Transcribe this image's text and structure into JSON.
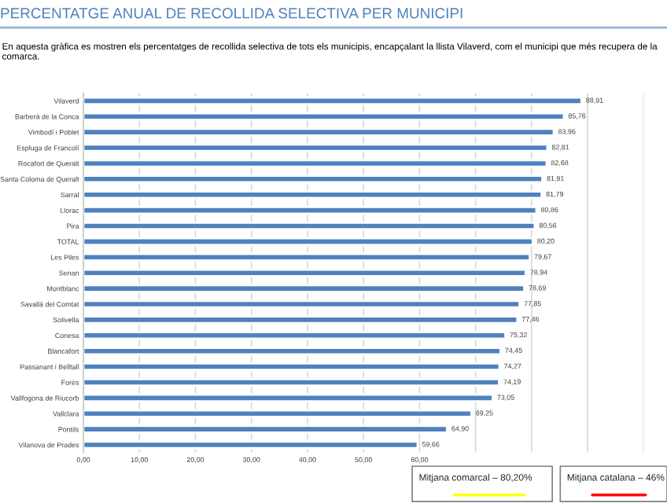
{
  "chart_data": {
    "type": "bar",
    "orientation": "horizontal",
    "title": "PERCENTATGE ANUAL DE RECOLLIDA SELECTIVA PER MUNICIPI",
    "subtitle": "En aquesta gràfica es mostren els percentatges de recollida selectiva de tots els municipis, encapçalant la llista Vilaverd, com el municipi que més recupera de la comarca.",
    "categories": [
      "Vilaverd",
      "Barberà de la Conca",
      "Vimbodí i Poblet",
      "Espluga de Francolí",
      "Rocafort de Queralt",
      "Santa Coloma de Queralt",
      "Sarral",
      "Llorac",
      "Pira",
      "TOTAL",
      "Les Piles",
      "Senan",
      "Montblanc",
      "Savallà del Comtat",
      "Solivella",
      "Conesa",
      "Blancafort",
      "Passanant i Belltall",
      "Forès",
      "Vallfogona de Riucorb",
      "Vallclara",
      "Pontils",
      "Vilanova de Prades"
    ],
    "values": [
      88.91,
      85.76,
      83.96,
      82.81,
      82.68,
      81.91,
      81.79,
      80.86,
      80.56,
      80.2,
      79.67,
      78.94,
      78.69,
      77.85,
      77.46,
      75.32,
      74.45,
      74.27,
      74.19,
      73.05,
      69.25,
      64.9,
      59.66
    ],
    "color": "#4f81bd",
    "value_labels": [
      "88,91",
      "85,76",
      "83,96",
      "82,81",
      "82,68",
      "81,91",
      "81,79",
      "80,86",
      "80,56",
      "80,20",
      "79,67",
      "78,94",
      "78,69",
      "77,85",
      "77,46",
      "75,32",
      "74,45",
      "74,27",
      "74,19",
      "73,05",
      "69,25",
      "64,90",
      "59,66"
    ],
    "xlim": [
      0,
      100
    ],
    "xticks": [
      {
        "value": 0,
        "label": "0,00"
      },
      {
        "value": 10,
        "label": "10,00"
      },
      {
        "value": 20,
        "label": "20,00"
      },
      {
        "value": 30,
        "label": "30,00"
      },
      {
        "value": 40,
        "label": "40,00"
      },
      {
        "value": 50,
        "label": "50,00"
      },
      {
        "value": 60,
        "label": "60,00"
      },
      {
        "value": 70,
        "label": null
      },
      {
        "value": 80,
        "label": null
      },
      {
        "value": 90,
        "label": null
      },
      {
        "value": 100,
        "label": null
      }
    ],
    "grid": "x",
    "annotations": [
      "Mitjana comarcal – 80,20%",
      "Mitjana catalana – 46%"
    ]
  }
}
